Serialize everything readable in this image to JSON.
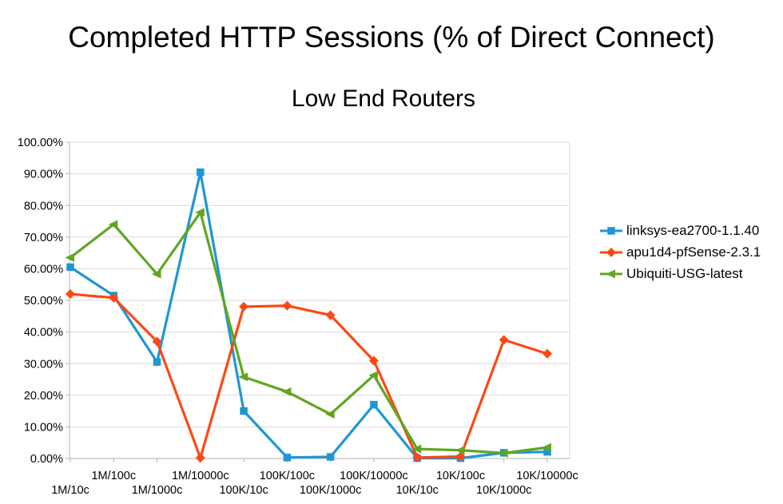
{
  "chart_data": {
    "type": "line",
    "title": "Completed HTTP Sessions (% of Direct Connect)",
    "subtitle": "Low End Routers",
    "categories": [
      "1M/10c",
      "1M/100c",
      "1M/1000c",
      "1M/10000c",
      "100K/10c",
      "100K/100c",
      "100K/1000c",
      "100K/10000c",
      "10K/10c",
      "10K/100c",
      "10K/1000c",
      "10K/10000c"
    ],
    "series": [
      {
        "name": "linksys-ea2700-1.1.40",
        "color": "#1F96D4",
        "marker": "square",
        "values": [
          60.5,
          51.5,
          30.5,
          90.5,
          15.0,
          0.3,
          0.5,
          17.0,
          0.1,
          0.1,
          1.8,
          2.1
        ]
      },
      {
        "name": "apu1d4-pfSense-2.3.1",
        "color": "#FF4713",
        "marker": "diamond",
        "values": [
          52.0,
          50.8,
          37.0,
          0.2,
          48.0,
          48.3,
          45.3,
          30.9,
          0.3,
          0.6,
          37.5,
          33.1
        ]
      },
      {
        "name": "Ubiquiti-USG-latest",
        "color": "#61A521",
        "marker": "triangle-left",
        "values": [
          63.5,
          74.0,
          58.3,
          77.8,
          25.8,
          21.1,
          14.0,
          26.3,
          3.0,
          2.6,
          1.7,
          3.5
        ]
      }
    ],
    "ylim": [
      0,
      100
    ],
    "ytick_step": 10,
    "y_tick_labels": [
      "0.00%",
      "10.00%",
      "20.00%",
      "30.00%",
      "40.00%",
      "50.00%",
      "60.00%",
      "70.00%",
      "80.00%",
      "90.00%",
      "100.00%"
    ],
    "grid": "horizontal",
    "legend_position": "right"
  },
  "colors": {
    "background": "#FFFFFF",
    "grid": "#D9D9D9",
    "axis": "#B3B3B3",
    "text": "#000000"
  }
}
